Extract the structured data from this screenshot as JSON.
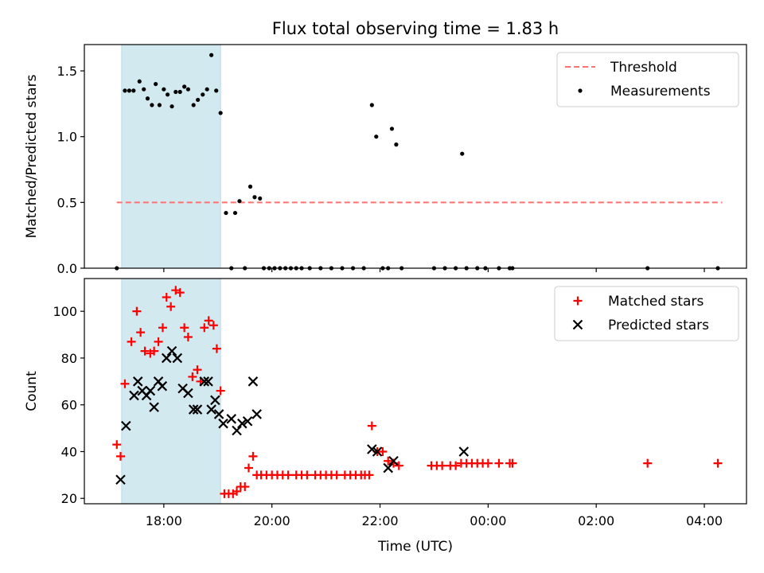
{
  "chart_data": {
    "title": "Flux total observing time = 1.83 h",
    "xlabel": "Time (UTC)",
    "x_ticks": [
      "18:00",
      "20:00",
      "22:00",
      "00:00",
      "02:00",
      "04:00"
    ],
    "x_tick_hours": [
      18,
      20,
      22,
      24,
      26,
      28
    ],
    "xlim_hours": [
      16.53,
      28.78
    ],
    "shaded_band_hours": [
      17.22,
      19.05
    ],
    "shaded_color": "#d3e9f0",
    "panels": [
      {
        "type": "scatter",
        "ylabel": "Matched/Predicted stars",
        "ylim": [
          0,
          1.7
        ],
        "y_ticks": [
          0.0,
          0.5,
          1.0,
          1.5
        ],
        "y_tick_labels": [
          "0.0",
          "0.5",
          "1.0",
          "1.5"
        ],
        "threshold": {
          "name": "Threshold",
          "value": 0.5,
          "x_range_hours": [
            17.13,
            28.33
          ],
          "color": "#ff7070"
        },
        "legend": {
          "position": "top-right",
          "entries": [
            "Threshold",
            "Measurements"
          ]
        },
        "series": [
          {
            "name": "Measurements",
            "color": "#000000",
            "points": [
              [
                17.13,
                0.0
              ],
              [
                17.28,
                1.35
              ],
              [
                17.36,
                1.35
              ],
              [
                17.44,
                1.35
              ],
              [
                17.55,
                1.42
              ],
              [
                17.63,
                1.36
              ],
              [
                17.7,
                1.29
              ],
              [
                17.78,
                1.24
              ],
              [
                17.85,
                1.4
              ],
              [
                17.92,
                1.24
              ],
              [
                18.0,
                1.36
              ],
              [
                18.07,
                1.32
              ],
              [
                18.15,
                1.23
              ],
              [
                18.22,
                1.34
              ],
              [
                18.3,
                1.34
              ],
              [
                18.38,
                1.38
              ],
              [
                18.45,
                1.36
              ],
              [
                18.55,
                1.24
              ],
              [
                18.63,
                1.28
              ],
              [
                18.72,
                1.32
              ],
              [
                18.8,
                1.36
              ],
              [
                18.88,
                1.62
              ],
              [
                18.97,
                1.35
              ],
              [
                19.05,
                1.18
              ],
              [
                19.15,
                0.42
              ],
              [
                19.25,
                0.0
              ],
              [
                19.32,
                0.42
              ],
              [
                19.4,
                0.51
              ],
              [
                19.5,
                0.0
              ],
              [
                19.6,
                0.62
              ],
              [
                19.68,
                0.54
              ],
              [
                19.78,
                0.53
              ],
              [
                19.85,
                0.0
              ],
              [
                19.95,
                0.0
              ],
              [
                20.05,
                0.0
              ],
              [
                20.15,
                0.0
              ],
              [
                20.25,
                0.0
              ],
              [
                20.35,
                0.0
              ],
              [
                20.45,
                0.0
              ],
              [
                20.55,
                0.0
              ],
              [
                20.7,
                0.0
              ],
              [
                20.9,
                0.0
              ],
              [
                21.1,
                0.0
              ],
              [
                21.3,
                0.0
              ],
              [
                21.5,
                0.0
              ],
              [
                21.7,
                0.0
              ],
              [
                21.85,
                1.24
              ],
              [
                21.93,
                1.0
              ],
              [
                22.05,
                0.0
              ],
              [
                22.15,
                0.0
              ],
              [
                22.22,
                1.06
              ],
              [
                22.3,
                0.94
              ],
              [
                22.4,
                0.0
              ],
              [
                23.0,
                0.0
              ],
              [
                23.2,
                0.0
              ],
              [
                23.4,
                0.0
              ],
              [
                23.6,
                0.0
              ],
              [
                23.8,
                0.0
              ],
              [
                23.95,
                0.0
              ],
              [
                23.52,
                0.87
              ],
              [
                24.2,
                0.0
              ],
              [
                24.4,
                0.0
              ],
              [
                24.45,
                0.0
              ],
              [
                26.95,
                0.0
              ],
              [
                28.25,
                0.0
              ]
            ]
          }
        ]
      },
      {
        "type": "scatter",
        "ylabel": "Count",
        "ylim": [
          17.7,
          114
        ],
        "y_ticks": [
          20,
          40,
          60,
          80,
          100
        ],
        "y_tick_labels": [
          "20",
          "40",
          "60",
          "80",
          "100"
        ],
        "legend": {
          "position": "top-right",
          "entries": [
            "Matched stars",
            "Predicted stars"
          ]
        },
        "series": [
          {
            "name": "Matched stars",
            "marker": "plus",
            "color": "#ff0000",
            "points": [
              [
                17.13,
                43
              ],
              [
                17.2,
                38
              ],
              [
                17.28,
                69
              ],
              [
                17.4,
                87
              ],
              [
                17.5,
                100
              ],
              [
                17.57,
                91
              ],
              [
                17.65,
                83
              ],
              [
                17.75,
                82
              ],
              [
                17.82,
                83
              ],
              [
                17.9,
                87
              ],
              [
                17.98,
                93
              ],
              [
                18.05,
                106
              ],
              [
                18.13,
                102
              ],
              [
                18.22,
                109
              ],
              [
                18.3,
                108
              ],
              [
                18.38,
                93
              ],
              [
                18.45,
                89
              ],
              [
                18.53,
                72
              ],
              [
                18.62,
                75
              ],
              [
                18.68,
                70
              ],
              [
                18.75,
                93
              ],
              [
                18.83,
                96
              ],
              [
                18.92,
                94
              ],
              [
                18.98,
                84
              ],
              [
                19.05,
                66
              ],
              [
                19.12,
                22
              ],
              [
                19.2,
                22
              ],
              [
                19.28,
                22
              ],
              [
                19.35,
                23
              ],
              [
                19.42,
                25
              ],
              [
                19.5,
                25
              ],
              [
                19.57,
                33
              ],
              [
                19.65,
                38
              ],
              [
                19.72,
                30
              ],
              [
                19.8,
                30
              ],
              [
                19.9,
                30
              ],
              [
                20.0,
                30
              ],
              [
                20.1,
                30
              ],
              [
                20.2,
                30
              ],
              [
                20.3,
                30
              ],
              [
                20.45,
                30
              ],
              [
                20.55,
                30
              ],
              [
                20.65,
                30
              ],
              [
                20.8,
                30
              ],
              [
                20.9,
                30
              ],
              [
                21.0,
                30
              ],
              [
                21.1,
                30
              ],
              [
                21.2,
                30
              ],
              [
                21.35,
                30
              ],
              [
                21.45,
                30
              ],
              [
                21.55,
                30
              ],
              [
                21.65,
                30
              ],
              [
                21.72,
                30
              ],
              [
                21.8,
                30
              ],
              [
                21.85,
                51
              ],
              [
                21.95,
                40
              ],
              [
                22.05,
                40
              ],
              [
                22.15,
                36
              ],
              [
                22.25,
                35
              ],
              [
                22.35,
                34
              ],
              [
                22.95,
                34
              ],
              [
                23.05,
                34
              ],
              [
                23.15,
                34
              ],
              [
                23.3,
                34
              ],
              [
                23.4,
                34
              ],
              [
                23.5,
                35
              ],
              [
                23.6,
                35
              ],
              [
                23.7,
                35
              ],
              [
                23.8,
                35
              ],
              [
                23.9,
                35
              ],
              [
                24.0,
                35
              ],
              [
                24.2,
                35
              ],
              [
                24.4,
                35
              ],
              [
                24.45,
                35
              ],
              [
                26.95,
                35
              ],
              [
                28.25,
                35
              ]
            ]
          },
          {
            "name": "Predicted stars",
            "marker": "x",
            "color": "#000000",
            "points": [
              [
                17.2,
                28
              ],
              [
                17.3,
                51
              ],
              [
                17.45,
                64
              ],
              [
                17.52,
                70
              ],
              [
                17.6,
                66
              ],
              [
                17.68,
                64
              ],
              [
                17.75,
                66
              ],
              [
                17.82,
                59
              ],
              [
                17.9,
                70
              ],
              [
                17.97,
                68
              ],
              [
                18.05,
                80
              ],
              [
                18.15,
                83
              ],
              [
                18.25,
                80
              ],
              [
                18.35,
                67
              ],
              [
                18.45,
                65
              ],
              [
                18.55,
                58
              ],
              [
                18.62,
                58
              ],
              [
                18.75,
                70
              ],
              [
                18.82,
                70
              ],
              [
                18.88,
                58
              ],
              [
                18.95,
                62
              ],
              [
                19.02,
                56
              ],
              [
                19.1,
                52
              ],
              [
                19.25,
                54
              ],
              [
                19.35,
                49
              ],
              [
                19.45,
                52
              ],
              [
                19.55,
                53
              ],
              [
                19.65,
                70
              ],
              [
                19.72,
                56
              ],
              [
                21.85,
                41
              ],
              [
                21.95,
                40
              ],
              [
                22.15,
                33
              ],
              [
                22.25,
                36
              ],
              [
                23.55,
                40
              ]
            ]
          }
        ]
      }
    ]
  }
}
